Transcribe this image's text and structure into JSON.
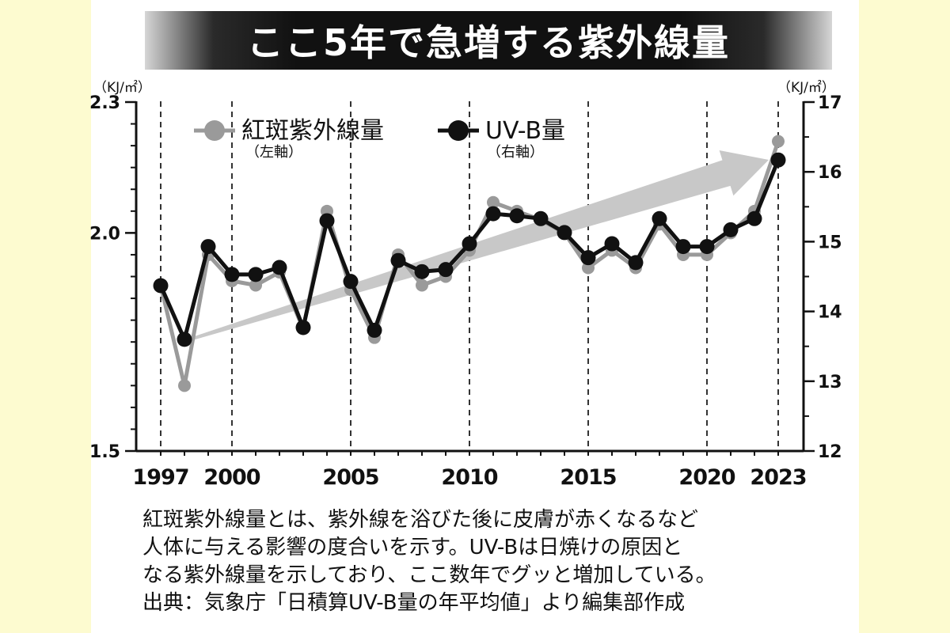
{
  "title": "ここ5年で急増する紫外線量",
  "chart_data": {
    "type": "line",
    "title": "ここ5年で急増する紫外線量",
    "x_tick_labels": [
      "1997",
      "2000",
      "2005",
      "2010",
      "2015",
      "2020",
      "2023"
    ],
    "x_ticks": [
      1997,
      2000,
      2005,
      2010,
      2015,
      2020,
      2023
    ],
    "xlim": [
      1997,
      2023
    ],
    "left_axis": {
      "unit": "（KJ/㎡）",
      "ylim": [
        1.5,
        2.3
      ],
      "ticks": [
        1.5,
        2.0,
        2.3
      ],
      "tick_labels": [
        "1.5",
        "2.0",
        "2.3"
      ]
    },
    "right_axis": {
      "unit": "（KJ/㎡）",
      "ylim": [
        12,
        17
      ],
      "ticks": [
        12,
        13,
        14,
        15,
        16,
        17
      ],
      "tick_labels": [
        "12",
        "13",
        "14",
        "15",
        "16",
        "17"
      ]
    },
    "grid": "vertical dashed lines at labeled years",
    "legend_position": "top-left",
    "x": [
      1997,
      1998,
      1999,
      2000,
      2001,
      2002,
      2003,
      2004,
      2005,
      2006,
      2007,
      2008,
      2009,
      2010,
      2011,
      2012,
      2013,
      2014,
      2015,
      2016,
      2017,
      2018,
      2019,
      2020,
      2021,
      2022,
      2023
    ],
    "series": [
      {
        "name": "紅斑紫外線量",
        "axis_note": "（左軸）",
        "axis": "left",
        "color": "#9a9a9a",
        "values": [
          1.88,
          1.65,
          1.95,
          1.89,
          1.88,
          1.91,
          1.78,
          2.05,
          1.87,
          1.76,
          1.95,
          1.88,
          1.9,
          1.96,
          2.07,
          2.05,
          2.03,
          2.0,
          1.92,
          1.96,
          1.92,
          2.02,
          1.95,
          1.95,
          2.0,
          2.05,
          2.21
        ]
      },
      {
        "name": "UV-B量",
        "axis_note": "（右軸）",
        "axis": "right",
        "color": "#111111",
        "values": [
          14.37,
          13.6,
          14.93,
          14.53,
          14.53,
          14.63,
          13.77,
          15.3,
          14.43,
          13.73,
          14.73,
          14.57,
          14.6,
          14.97,
          15.4,
          15.37,
          15.33,
          15.13,
          14.77,
          14.97,
          14.7,
          15.33,
          14.93,
          14.93,
          15.17,
          15.33,
          16.17
        ]
      }
    ],
    "annotation": "trend arrow from 1998 to 2022"
  },
  "caption": {
    "lines": [
      "紅斑紫外線量とは、紫外線を浴びた後に皮膚が赤くなるなど",
      "人体に与える影響の度合いを示す。UV-Bは日焼けの原因と",
      "なる紫外線量を示しており、ここ数年でグッと増加している。",
      "出典：気象庁「日積算UV-B量の年平均値」より編集部作成"
    ]
  },
  "colors": {
    "background": "#fdfbd0",
    "card": "#ffffff",
    "series_gray": "#9a9a9a",
    "series_black": "#111111",
    "arrow": "#c8c8c8"
  }
}
